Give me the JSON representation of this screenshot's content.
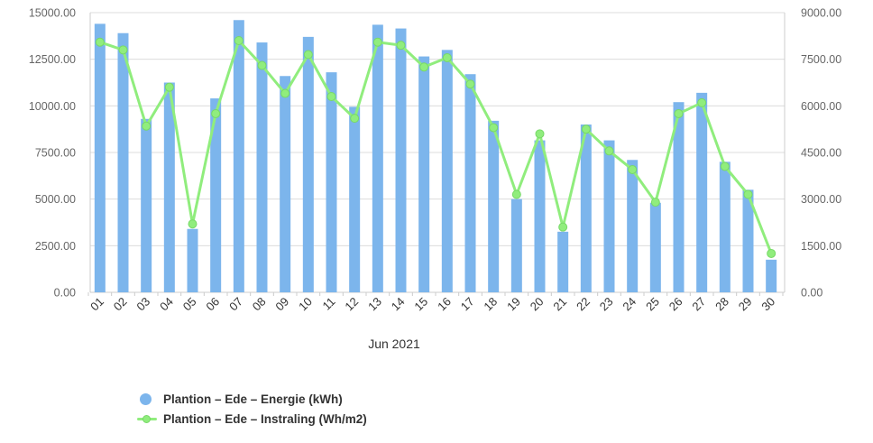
{
  "chart": {
    "legend": [
      {
        "label": "Plantion – Ede – Energie (kWh)",
        "marker": "circle",
        "color": "#7cb5ec"
      },
      {
        "label": "Plantion – Ede – Instraling (Wh/m2)",
        "marker": "line-circle",
        "color": "#90ed7d"
      }
    ]
  },
  "chart_data": {
    "type": "bar",
    "title": "",
    "xlabel": "Jun 2021",
    "categories": [
      "01",
      "02",
      "03",
      "04",
      "05",
      "06",
      "07",
      "08",
      "09",
      "10",
      "11",
      "12",
      "13",
      "14",
      "15",
      "16",
      "17",
      "18",
      "19",
      "20",
      "21",
      "22",
      "23",
      "24",
      "25",
      "26",
      "27",
      "28",
      "29",
      "30"
    ],
    "series": [
      {
        "name": "Plantion – Ede – Energie (kWh)",
        "type": "bar",
        "yaxis": "left",
        "color": "#7cb5ec",
        "values": [
          14400,
          13900,
          9300,
          11250,
          3400,
          10400,
          14600,
          13400,
          11600,
          13700,
          11800,
          9950,
          14350,
          14150,
          12650,
          13000,
          11700,
          9200,
          5000,
          8150,
          3250,
          9000,
          8150,
          7100,
          4800,
          10200,
          10700,
          7000,
          5500,
          1750
        ]
      },
      {
        "name": "Plantion – Ede – Instraling (Wh/m2)",
        "type": "line",
        "yaxis": "right",
        "color": "#90ed7d",
        "marker_stroke": "#77d967",
        "values": [
          8050,
          7800,
          5350,
          6600,
          2200,
          5750,
          8100,
          7300,
          6400,
          7650,
          6300,
          5600,
          8050,
          7950,
          7250,
          7550,
          6700,
          5300,
          3150,
          5100,
          2100,
          5250,
          4550,
          3950,
          2900,
          5750,
          6100,
          4050,
          3150,
          1250
        ]
      }
    ],
    "axes": {
      "left": {
        "min": 0,
        "max": 15000,
        "tick_interval": 2500,
        "tick_labels": [
          "0.00",
          "2500.00",
          "5000.00",
          "7500.00",
          "10000.00",
          "12500.00",
          "15000.00"
        ]
      },
      "right": {
        "min": 0,
        "max": 9000,
        "tick_interval": 1500,
        "tick_labels": [
          "0.00",
          "1500.00",
          "3000.00",
          "4500.00",
          "6000.00",
          "7500.00",
          "9000.00"
        ]
      }
    },
    "grid": true,
    "legend_position": "bottom-left",
    "colors": {
      "grid": "#dcdcdc",
      "axis_line": "#cccccc",
      "tick_text": "#666666",
      "day_text": "#333333",
      "month_text": "#333333"
    }
  }
}
